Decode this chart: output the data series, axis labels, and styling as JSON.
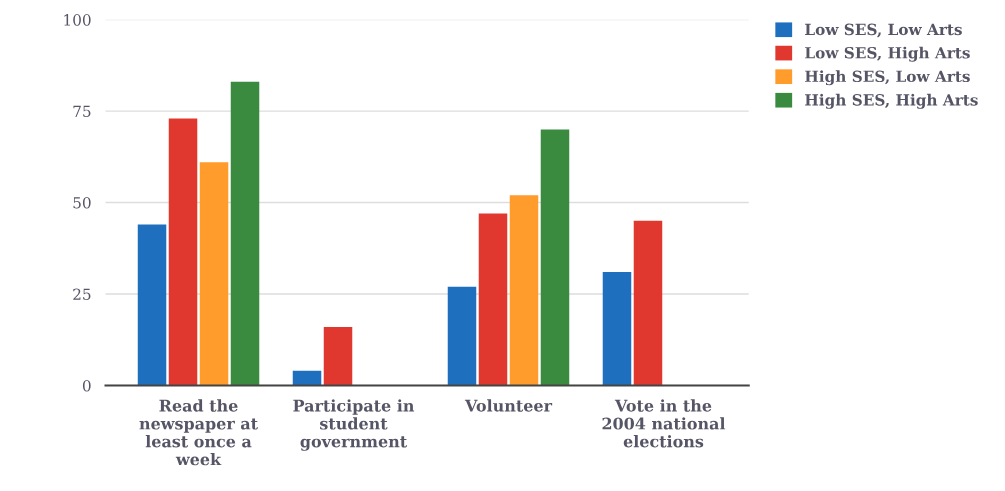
{
  "chart_data": {
    "type": "bar",
    "categories": [
      "Read the\nnewspaper at\nleast once a\nweek",
      "Participate in\nstudent\ngovernment",
      "Volunteer",
      "Vote in the\n2004 national\nelections"
    ],
    "series": [
      {
        "name": "Low SES, Low Arts",
        "color": "#1f6fbf",
        "values": [
          44,
          4,
          27,
          31
        ]
      },
      {
        "name": "Low SES, High Arts",
        "color": "#e0382e",
        "values": [
          73,
          16,
          47,
          45
        ]
      },
      {
        "name": "High SES, Low Arts",
        "color": "#ff9c2b",
        "values": [
          61,
          null,
          52,
          null
        ]
      },
      {
        "name": "High SES, High Arts",
        "color": "#3a8a3f",
        "values": [
          83,
          null,
          70,
          null
        ]
      }
    ],
    "ylim": [
      0,
      100
    ],
    "yticks": [
      0,
      25,
      50,
      75,
      100
    ],
    "grid": "y",
    "legend": "top right"
  }
}
